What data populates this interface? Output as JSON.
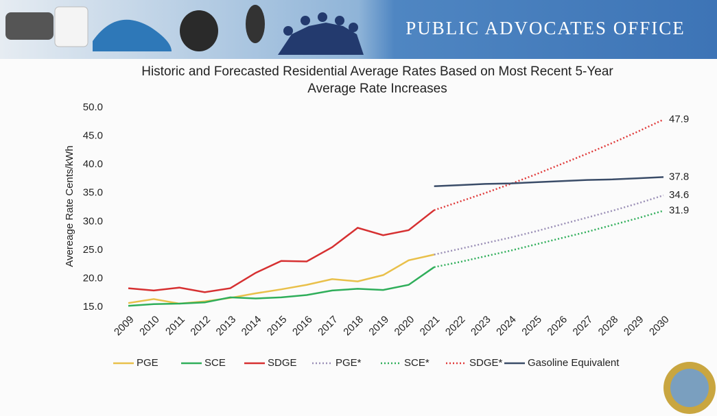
{
  "header": {
    "title": "PUBLIC ADVOCATES OFFICE"
  },
  "chart_data": {
    "type": "line",
    "title": "Historic and Forecasted Residential Average Rates Based on Most Recent 5-Year Average Rate Increases",
    "y_label": "Avereage Rate Cents/kWh",
    "categories": [
      "2009",
      "2010",
      "2011",
      "2012",
      "2013",
      "2014",
      "2015",
      "2016",
      "2017",
      "2018",
      "2019",
      "2020",
      "2021",
      "2022",
      "2023",
      "2024",
      "2025",
      "2026",
      "2027",
      "2028",
      "2029",
      "2030"
    ],
    "ylim": [
      15,
      50
    ],
    "yticks": [
      {
        "value": 15,
        "label": "15.0"
      },
      {
        "value": 20,
        "label": "20.0"
      },
      {
        "value": 25,
        "label": "25.0"
      },
      {
        "value": 30,
        "label": "30.0"
      },
      {
        "value": 35,
        "label": "35.0"
      },
      {
        "value": 40,
        "label": "40.0"
      },
      {
        "value": 45,
        "label": "45.0"
      },
      {
        "value": 50,
        "label": "50.0"
      }
    ],
    "grid": false,
    "legend": "bottom",
    "series": [
      {
        "name": "PGE",
        "color": "#e9c04a",
        "dash": "solid",
        "values": [
          15.7,
          16.4,
          15.6,
          16.0,
          16.6,
          17.4,
          18.1,
          18.9,
          19.9,
          19.5,
          20.6,
          23.2,
          24.2,
          null,
          null,
          null,
          null,
          null,
          null,
          null,
          null,
          null
        ]
      },
      {
        "name": "SCE",
        "color": "#2fae5a",
        "dash": "solid",
        "values": [
          15.2,
          15.5,
          15.6,
          15.8,
          16.7,
          16.5,
          16.7,
          17.1,
          17.9,
          18.2,
          18.0,
          18.9,
          22.0,
          null,
          null,
          null,
          null,
          null,
          null,
          null,
          null,
          null
        ]
      },
      {
        "name": "SDGE",
        "color": "#d63031",
        "dash": "solid",
        "values": [
          18.3,
          17.9,
          18.4,
          17.6,
          18.3,
          21.0,
          23.1,
          23.0,
          25.5,
          28.9,
          27.6,
          28.5,
          32.0,
          null,
          null,
          null,
          null,
          null,
          null,
          null,
          null,
          null
        ]
      },
      {
        "name": "PGE*",
        "color": "#9a8fb6",
        "dash": "dotted",
        "end_label": true,
        "values": [
          null,
          null,
          null,
          null,
          null,
          null,
          null,
          null,
          null,
          null,
          null,
          null,
          24.2,
          25.2,
          26.2,
          27.2,
          28.3,
          29.5,
          30.7,
          31.9,
          33.2,
          34.6
        ]
      },
      {
        "name": "SCE*",
        "color": "#2fae5a",
        "dash": "dotted",
        "end_label": true,
        "values": [
          null,
          null,
          null,
          null,
          null,
          null,
          null,
          null,
          null,
          null,
          null,
          null,
          22.0,
          22.9,
          23.9,
          24.9,
          26.0,
          27.1,
          28.2,
          29.4,
          30.6,
          31.9
        ]
      },
      {
        "name": "SDGE*",
        "color": "#e03a3a",
        "dash": "dotted",
        "end_label": true,
        "values": [
          null,
          null,
          null,
          null,
          null,
          null,
          null,
          null,
          null,
          null,
          null,
          null,
          32.0,
          33.5,
          35.0,
          36.6,
          38.3,
          40.1,
          41.9,
          43.8,
          45.8,
          47.9
        ]
      },
      {
        "name": "Gasoline Equivalent",
        "color": "#3a4c68",
        "dash": "solid",
        "end_label": true,
        "values": [
          null,
          null,
          null,
          null,
          null,
          null,
          null,
          null,
          null,
          null,
          null,
          null,
          36.2,
          36.4,
          36.6,
          36.7,
          36.9,
          37.1,
          37.3,
          37.4,
          37.6,
          37.8
        ]
      }
    ]
  }
}
